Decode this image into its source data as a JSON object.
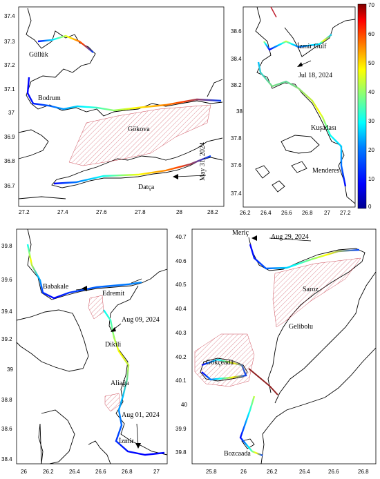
{
  "colorbar": {
    "ticks": [
      "70",
      "60",
      "50",
      "40",
      "30",
      "20",
      "10",
      "0"
    ],
    "colors": [
      "#00008f",
      "#0000ff",
      "#0080ff",
      "#00ffff",
      "#80ff80",
      "#ffff00",
      "#ff8000",
      "#ff0000",
      "#800000"
    ]
  },
  "panels": [
    {
      "id": "gokova",
      "xticks": [
        "27.2",
        "27.4",
        "27.6",
        "27.8",
        "28",
        "28.2"
      ],
      "yticks": [
        "37.4",
        "37.3",
        "37.2",
        "37.1",
        "37",
        "36.9",
        "36.8",
        "36.7"
      ],
      "places": [
        "Güllük",
        "Bodrum",
        "Gökova",
        "Datça"
      ],
      "date": "May 31, 2024"
    },
    {
      "id": "izmir",
      "xticks": [
        "26.2",
        "26.4",
        "26.6",
        "26.8",
        "27",
        "27.2"
      ],
      "yticks": [
        "38.6",
        "38.4",
        "38.2",
        "38",
        "37.8",
        "37.6",
        "37.4"
      ],
      "places": [
        "İzmir Gulf",
        "Kuşadası",
        "Menderes"
      ],
      "date": "Jul 18, 2024"
    },
    {
      "id": "edremit",
      "xticks": [
        "26",
        "26.2",
        "26.4",
        "26.6",
        "26.8",
        "27"
      ],
      "yticks": [
        "39.8",
        "39.6",
        "39.4",
        "39.2",
        "39",
        "38.8",
        "38.6",
        "38.4"
      ],
      "places": [
        "Babakale",
        "Edremit",
        "Dikili",
        "Aliağa",
        "İzmir"
      ],
      "dates": [
        "Aug 09, 2024",
        "Aug 01, 2024"
      ]
    },
    {
      "id": "saroz",
      "xticks": [
        "25.8",
        "26",
        "26.2",
        "26.4",
        "26.6",
        "26.8"
      ],
      "yticks": [
        "40.7",
        "40.6",
        "40.5",
        "40.4",
        "40.3",
        "40.2",
        "40.1",
        "40",
        "39.9",
        "39.8"
      ],
      "places": [
        "Meriç",
        "Saroz",
        "Gelibolu",
        "Gökçeada",
        "Bozcaada"
      ],
      "date": "Aug 29, 2024"
    }
  ]
}
